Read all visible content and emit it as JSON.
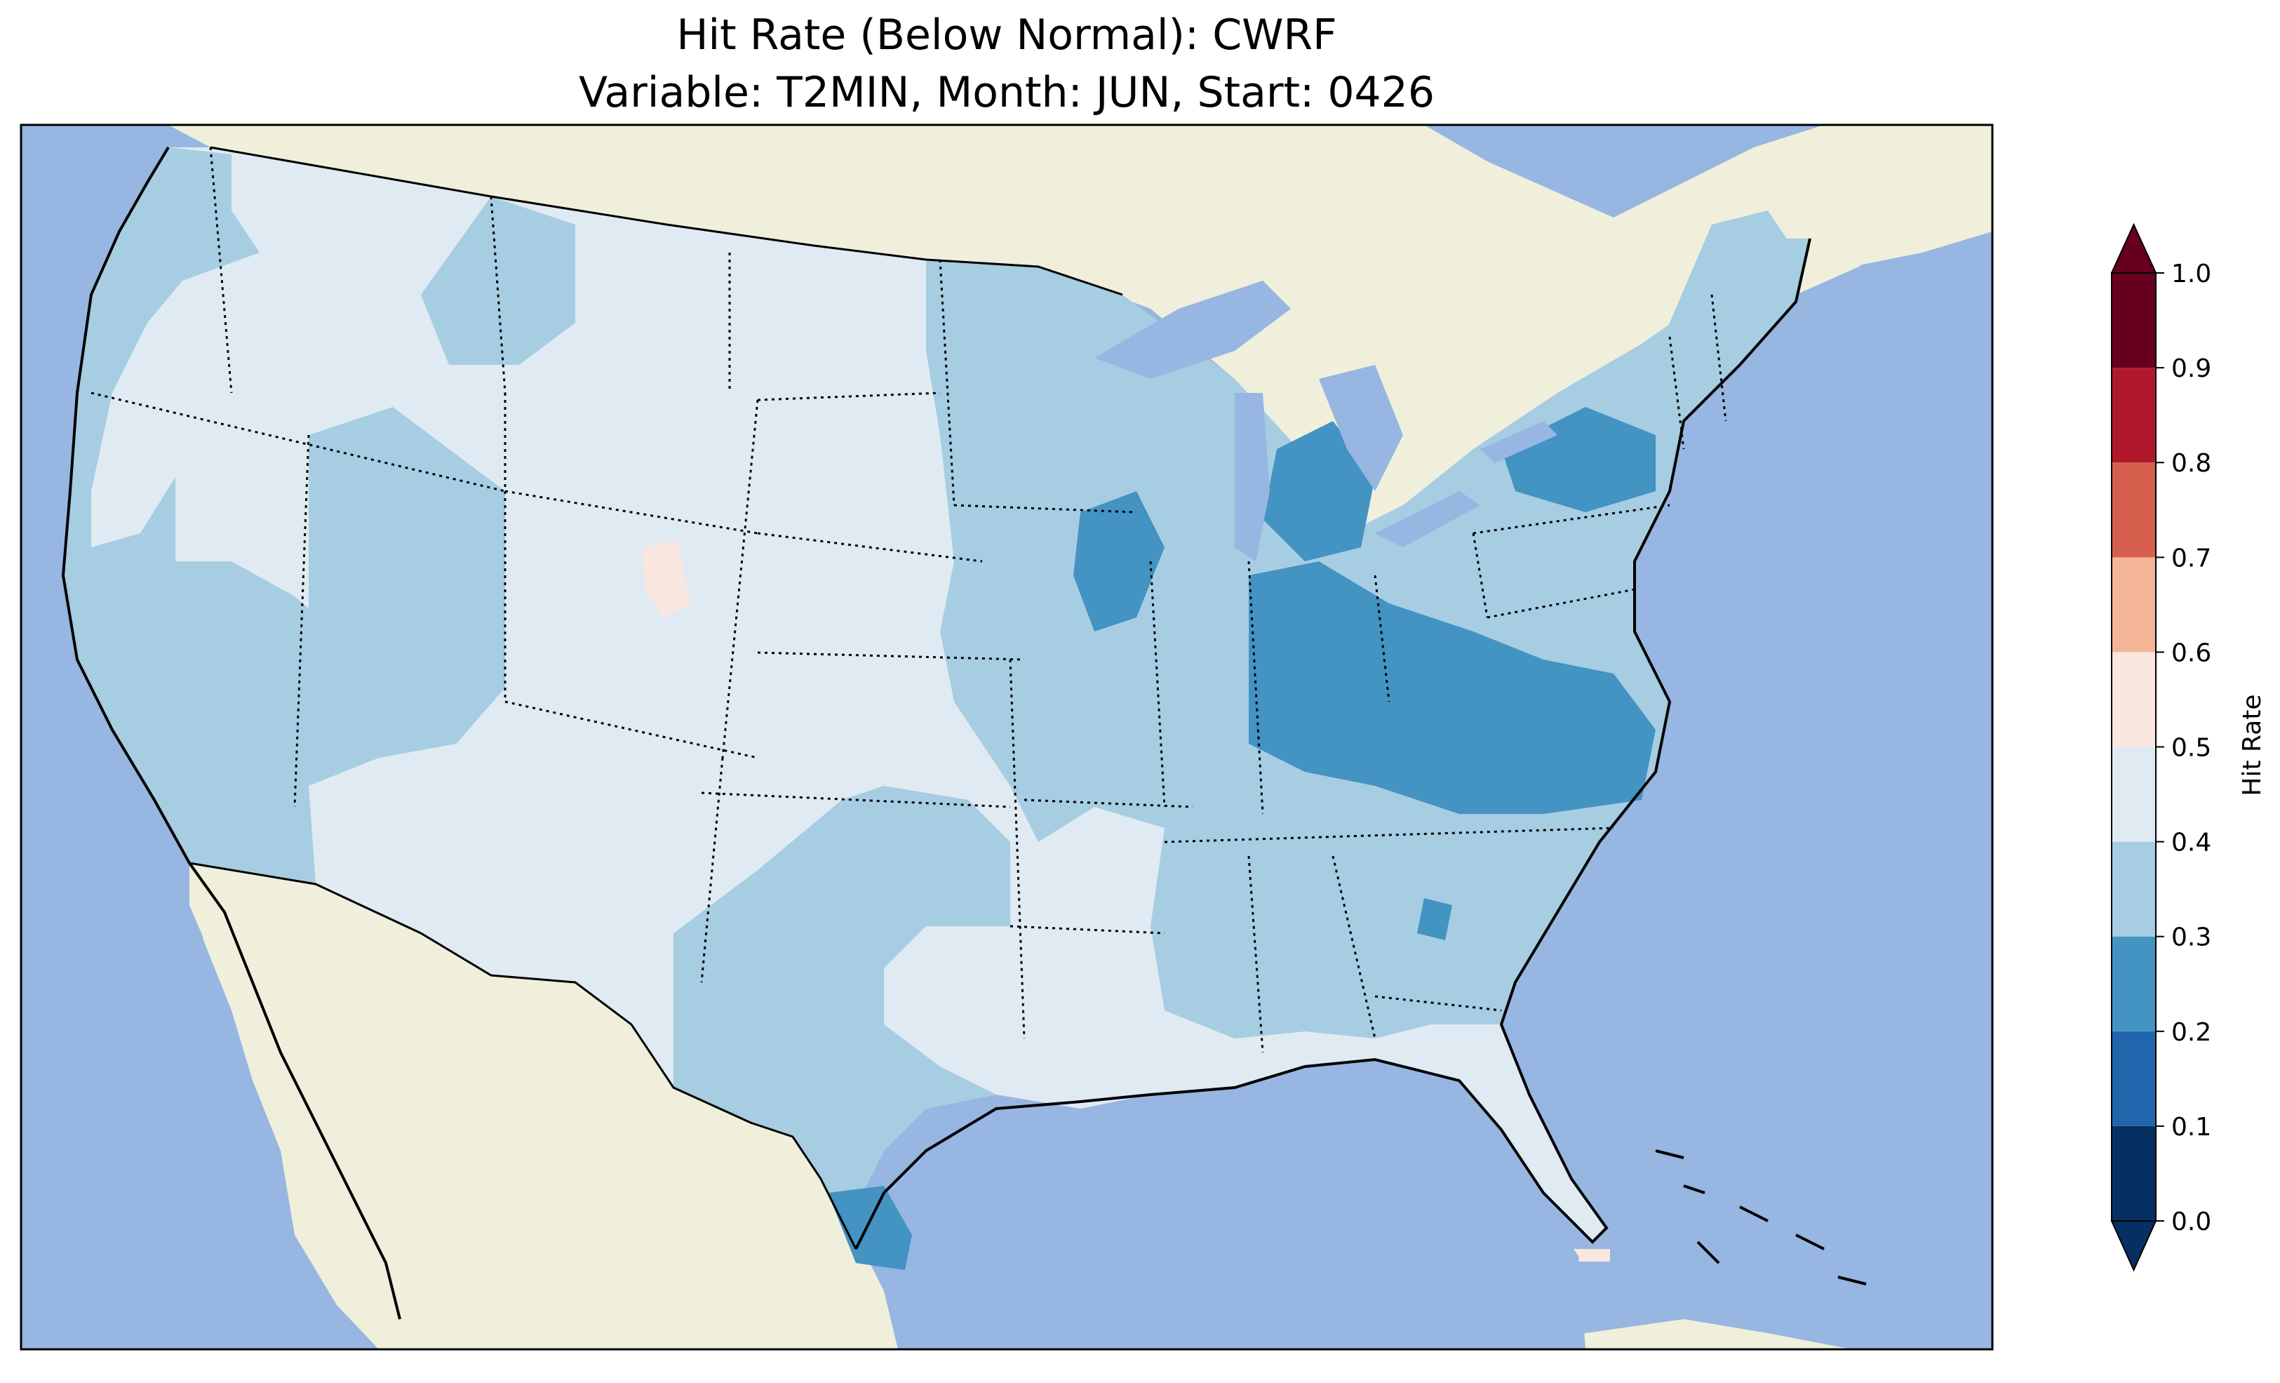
{
  "title": {
    "line1": "Hit Rate (Below Normal): CWRF",
    "line2": "Variable: T2MIN, Month: JUN, Start: 0426"
  },
  "colorbar": {
    "label": "Hit Rate",
    "ticks": [
      "0.0",
      "0.1",
      "0.2",
      "0.3",
      "0.4",
      "0.5",
      "0.6",
      "0.7",
      "0.8",
      "0.9",
      "1.0"
    ],
    "bins": [
      {
        "range": [
          0.0,
          0.1
        ],
        "color": "#053061"
      },
      {
        "range": [
          0.1,
          0.2
        ],
        "color": "#2166ac"
      },
      {
        "range": [
          0.2,
          0.3
        ],
        "color": "#4393c3"
      },
      {
        "range": [
          0.3,
          0.4
        ],
        "color": "#a6cde2"
      },
      {
        "range": [
          0.4,
          0.5
        ],
        "color": "#e0eaf2"
      },
      {
        "range": [
          0.5,
          0.6
        ],
        "color": "#f8e6df"
      },
      {
        "range": [
          0.6,
          0.7
        ],
        "color": "#f4b597"
      },
      {
        "range": [
          0.7,
          0.8
        ],
        "color": "#d6604d"
      },
      {
        "range": [
          0.8,
          0.9
        ],
        "color": "#b2182b"
      },
      {
        "range": [
          0.9,
          1.0
        ],
        "color": "#67001f"
      }
    ],
    "extend_under_color": "#053061",
    "extend_over_color": "#67001f"
  },
  "map": {
    "ocean_color": "#97b6e1",
    "land_color": "#efefdc",
    "border_color": "#000000"
  },
  "chart_data": {
    "type": "heatmap",
    "title": "Hit Rate (Below Normal): CWRF\nVariable: T2MIN, Month: JUN, Start: 0426",
    "colorbar_label": "Hit Rate",
    "range": [
      0.0,
      1.0
    ],
    "levels": [
      0.0,
      0.1,
      0.2,
      0.3,
      0.4,
      0.5,
      0.6,
      0.7,
      0.8,
      0.9,
      1.0
    ],
    "regions": [
      {
        "region": "Pacific Northwest",
        "class": "0.3-0.4"
      },
      {
        "region": "California / Nevada",
        "class": "0.3-0.4"
      },
      {
        "region": "Northern Rockies / Montana / Idaho",
        "class": "0.4-0.5"
      },
      {
        "region": "Colorado / Wyoming / Utah",
        "class": "0.4-0.5"
      },
      {
        "region": "Central Colorado Rockies",
        "class": "0.5-0.6"
      },
      {
        "region": "Northern & Central Plains",
        "class": "0.4-0.5"
      },
      {
        "region": "Arizona / New Mexico",
        "class": "0.4-0.5"
      },
      {
        "region": "Texas",
        "class": "0.3-0.4"
      },
      {
        "region": "South Texas coast",
        "class": "0.2-0.3"
      },
      {
        "region": "Upper Midwest / Minnesota / Iowa",
        "class": "0.3-0.4"
      },
      {
        "region": "Wisconsin / Michigan",
        "class": "0.2-0.3"
      },
      {
        "region": "Indiana / Ohio Valley / Kentucky",
        "class": "0.2-0.3"
      },
      {
        "region": "Virginia / North Carolina",
        "class": "0.2-0.3"
      },
      {
        "region": "Western New York",
        "class": "0.2-0.3"
      },
      {
        "region": "Southeast / Gulf States",
        "class": "0.3-0.4"
      },
      {
        "region": "Louisiana / Arkansas",
        "class": "0.4-0.5"
      },
      {
        "region": "Florida",
        "class": "0.4-0.5"
      },
      {
        "region": "Florida Keys",
        "class": "0.5-0.6"
      },
      {
        "region": "New England",
        "class": "0.3-0.4"
      }
    ]
  }
}
